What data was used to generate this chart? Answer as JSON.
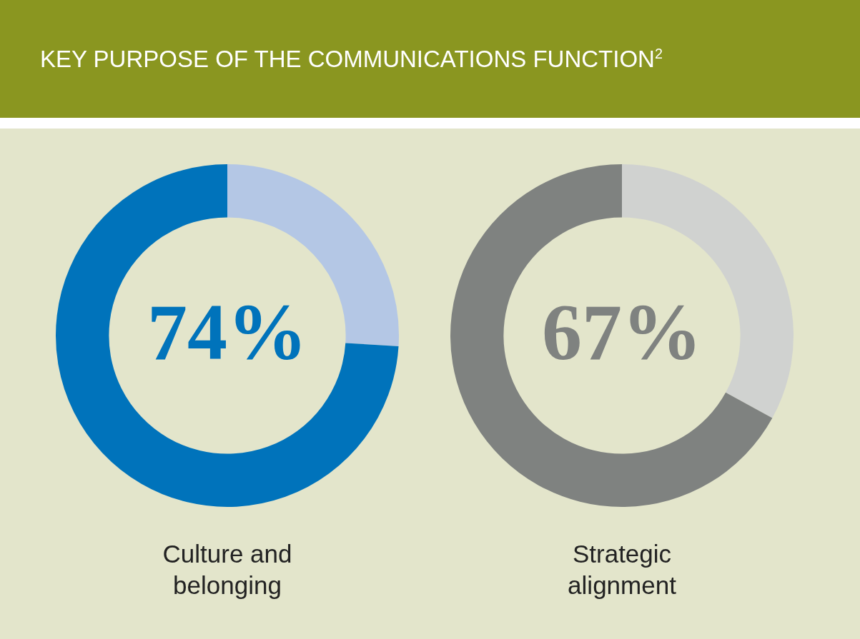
{
  "chart_data": [
    {
      "type": "donut",
      "title": "KEY PURPOSE OF THE COMMUNICATIONS FUNCTION$^{2}$",
      "xlabel": "Culture and belonging",
      "categories": [
        null,
        null
      ],
      "values": [
        26,
        74
      ],
      "colors": [
        "#b4c7e5",
        "#0073bb"
      ],
      "value_labels": [
        null,
        "74%"
      ]
    },
    {
      "type": "donut",
      "xlabel": "Strategic alignment",
      "categories": [
        null,
        null
      ],
      "values": [
        33,
        67
      ],
      "colors": [
        "#d0d2d0",
        "#7f8280"
      ],
      "value_labels": [
        null,
        "67%"
      ]
    }
  ]
}
